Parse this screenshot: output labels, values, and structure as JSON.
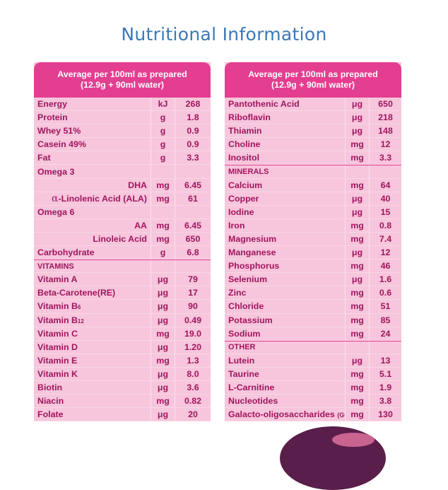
{
  "title": "Nutritional Information",
  "left_panel": {
    "header_line1": "Average per 100ml as prepared",
    "header_line2": "(12.9g + 90ml water)",
    "rows": [
      {
        "name": "Energy",
        "unit": "kJ",
        "value": "268"
      },
      {
        "name": "Protein",
        "unit": "g",
        "value": "1.8"
      },
      {
        "name": "Whey 51%",
        "unit": "g",
        "value": "0.9"
      },
      {
        "name": "Casein 49%",
        "unit": "g",
        "value": "0.9"
      },
      {
        "name": "Fat",
        "unit": "g",
        "value": "3.3"
      },
      {
        "name": "Omega 3",
        "unit": "",
        "value": ""
      },
      {
        "name": "DHA",
        "unit": "mg",
        "value": "6.45"
      },
      {
        "name_prefix": "α",
        "name": "-Linolenic Acid (ALA)",
        "unit": "mg",
        "value": "61"
      },
      {
        "name": "Omega 6",
        "unit": "",
        "value": ""
      },
      {
        "name": "AA",
        "unit": "mg",
        "value": "6.45"
      },
      {
        "name": "Linoleic Acid",
        "unit": "mg",
        "value": "650"
      },
      {
        "name": "Carbohydrate",
        "unit": "g",
        "value": "6.8"
      },
      {
        "name": "VITAMINS",
        "unit": "",
        "value": ""
      },
      {
        "name": "Vitamin A",
        "unit": "μg",
        "value": "79"
      },
      {
        "name": "Beta-Carotene(RE)",
        "unit": "μg",
        "value": "17"
      },
      {
        "name": "Vitamin B",
        "name_sub": "6",
        "unit": "μg",
        "value": "90"
      },
      {
        "name": "Vitamin B",
        "name_sub": "12",
        "unit": "μg",
        "value": "0.49"
      },
      {
        "name": "Vitamin C",
        "unit": "mg",
        "value": "19.0"
      },
      {
        "name": "Vitamin D",
        "unit": "μg",
        "value": "1.20"
      },
      {
        "name": "Vitamin E",
        "unit": "mg",
        "value": "1.3"
      },
      {
        "name": "Vitamin K",
        "unit": "μg",
        "value": "8.0"
      },
      {
        "name": "Biotin",
        "unit": "μg",
        "value": "3.6"
      },
      {
        "name": "Niacin",
        "unit": "mg",
        "value": "0.82"
      },
      {
        "name": "Folate",
        "unit": "μg",
        "value": "20"
      }
    ]
  },
  "right_panel": {
    "header_line1": "Average per 100ml as prepared",
    "header_line2": "(12.9g + 90ml water)",
    "rows": [
      {
        "name": "Pantothenic Acid",
        "unit": "μg",
        "value": "650"
      },
      {
        "name": "Riboflavin",
        "unit": "μg",
        "value": "218"
      },
      {
        "name": "Thiamin",
        "unit": "μg",
        "value": "148"
      },
      {
        "name": "Choline",
        "unit": "mg",
        "value": "12"
      },
      {
        "name": "Inositol",
        "unit": "mg",
        "value": "3.3"
      },
      {
        "name": "MINERALS",
        "unit": "",
        "value": ""
      },
      {
        "name": "Calcium",
        "unit": "mg",
        "value": "64"
      },
      {
        "name": "Copper",
        "unit": "μg",
        "value": "40"
      },
      {
        "name": "Iodine",
        "unit": "μg",
        "value": "15"
      },
      {
        "name": "Iron",
        "unit": "mg",
        "value": "0.8"
      },
      {
        "name": "Magnesium",
        "unit": "mg",
        "value": "7.4"
      },
      {
        "name": "Manganese",
        "unit": "μg",
        "value": "12"
      },
      {
        "name": "Phosphorus",
        "unit": "mg",
        "value": "46"
      },
      {
        "name": "Selenium",
        "unit": "μg",
        "value": "1.6"
      },
      {
        "name": "Zinc",
        "unit": "mg",
        "value": "0.6"
      },
      {
        "name": "Chloride",
        "unit": "mg",
        "value": "51"
      },
      {
        "name": "Potassium",
        "unit": "mg",
        "value": "85"
      },
      {
        "name": "Sodium",
        "unit": "mg",
        "value": "24"
      },
      {
        "name": "OTHER",
        "unit": "",
        "value": ""
      },
      {
        "name": "Lutein",
        "unit": "μg",
        "value": "13"
      },
      {
        "name": "Taurine",
        "unit": "mg",
        "value": "5.1"
      },
      {
        "name": "L-Carnitine",
        "unit": "mg",
        "value": "1.9"
      },
      {
        "name": "Nucleotides",
        "unit": "mg",
        "value": "3.8"
      },
      {
        "name": "Galacto-oligosaccharides",
        "name_suffix": "(GOS)",
        "unit": "mg",
        "value": "130"
      }
    ]
  }
}
